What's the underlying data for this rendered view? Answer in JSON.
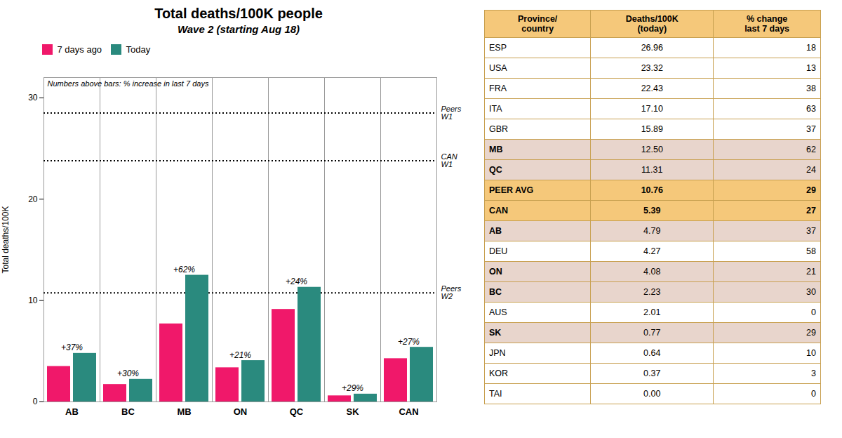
{
  "chart_data": [
    {
      "type": "bar",
      "title": "Total deaths/100K people",
      "subtitle": "Wave 2 (starting Aug 18)",
      "ylabel": "Total deaths/100K",
      "categories": [
        "AB",
        "BC",
        "MB",
        "ON",
        "QC",
        "SK",
        "CAN"
      ],
      "series": [
        {
          "name": "7 days ago",
          "color": "#f0186a",
          "values": [
            3.5,
            1.72,
            7.7,
            3.37,
            9.13,
            0.6,
            4.27
          ]
        },
        {
          "name": "Today",
          "color": "#2a8a7e",
          "values": [
            4.79,
            2.23,
            12.5,
            4.08,
            11.31,
            0.77,
            5.39
          ]
        }
      ],
      "increase_labels": [
        "+37%",
        "+30%",
        "+62%",
        "+21%",
        "+24%",
        "+29%",
        "+27%"
      ],
      "reference_lines": [
        {
          "value": 28.5,
          "label": "Peers\nW1"
        },
        {
          "value": 23.8,
          "label": "CAN\nW1"
        },
        {
          "value": 10.76,
          "label": "Peers\nW2"
        }
      ],
      "annotation": "Numbers above bars: % increase in last 7 days",
      "ylim": [
        0,
        32
      ],
      "yticks": [
        0,
        10,
        20,
        30
      ],
      "grid": false,
      "legend": "upper left"
    },
    {
      "type": "table",
      "headers": [
        "Province/\ncountry",
        "Deaths/100K\n(today)",
        "% change\nlast 7 days"
      ],
      "rows": [
        [
          "ESP",
          "26.96",
          "18"
        ],
        [
          "USA",
          "23.32",
          "13"
        ],
        [
          "FRA",
          "22.43",
          "38"
        ],
        [
          "ITA",
          "17.10",
          "63"
        ],
        [
          "GBR",
          "15.89",
          "37"
        ],
        [
          "MB",
          "12.50",
          "62"
        ],
        [
          "QC",
          "11.31",
          "24"
        ],
        [
          "PEER AVG",
          "10.76",
          "29"
        ],
        [
          "CAN",
          "5.39",
          "27"
        ],
        [
          "AB",
          "4.79",
          "37"
        ],
        [
          "DEU",
          "4.27",
          "58"
        ],
        [
          "ON",
          "4.08",
          "21"
        ],
        [
          "BC",
          "2.23",
          "30"
        ],
        [
          "AUS",
          "2.01",
          "0"
        ],
        [
          "SK",
          "0.77",
          "29"
        ],
        [
          "JPN",
          "0.64",
          "10"
        ],
        [
          "KOR",
          "0.37",
          "3"
        ],
        [
          "TAI",
          "0.00",
          "0"
        ]
      ],
      "row_colors": {
        "MB": "#e8d5cc",
        "QC": "#e8d5cc",
        "PEER AVG": "#f5c87a",
        "CAN": "#f5c87a",
        "AB": "#e8d5cc",
        "ON": "#e8d5cc",
        "BC": "#e8d5cc",
        "SK": "#e8d5cc"
      },
      "header_color": "#f5c87a"
    }
  ]
}
